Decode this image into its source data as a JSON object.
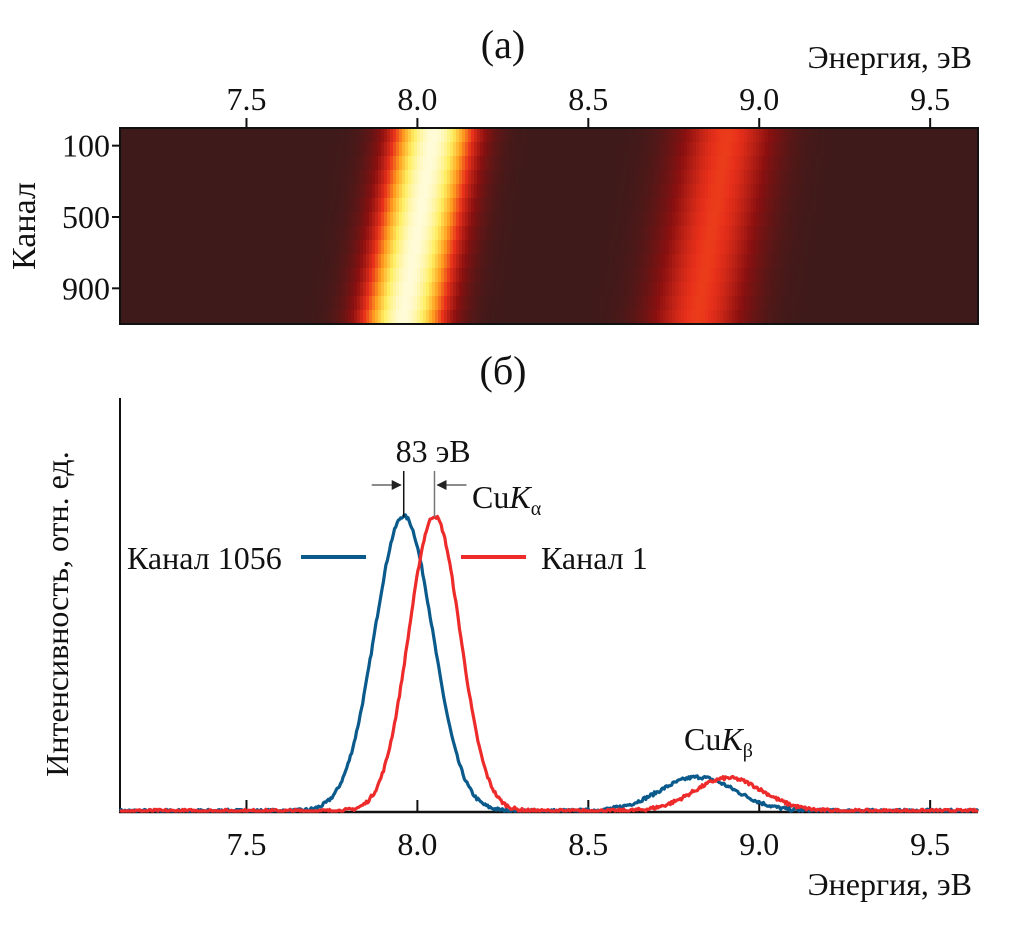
{
  "chart_data": [
    {
      "type": "heatmap",
      "panel_label": "(a)",
      "xlabel": "Энергия, эВ",
      "ylabel": "Канал",
      "xlim": [
        7.13,
        9.64
      ],
      "ylim": [
        1,
        1100
      ],
      "xticks": [
        7.5,
        8.0,
        8.5,
        9.0,
        9.5
      ],
      "xtick_labels": [
        "7.5",
        "8.0",
        "8.5",
        "9.0",
        "9.5"
      ],
      "yticks": [
        100,
        500,
        900
      ],
      "ytick_labels": [
        "100",
        "500",
        "900"
      ],
      "xaxis_position": "top",
      "colormap": [
        "#3e1a1a",
        "#8b1010",
        "#e8301a",
        "#ffa020",
        "#ffee60",
        "#fffbd8"
      ],
      "peaks": [
        {
          "name": "CuKα",
          "center_at_channel_1": 8.05,
          "center_at_channel_1056": 7.96,
          "width_ev": 0.085,
          "intensity": 1.0
        },
        {
          "name": "CuKβ",
          "center_at_channel_1": 8.91,
          "center_at_channel_1056": 8.82,
          "width_ev": 0.1,
          "intensity": 0.42
        }
      ]
    },
    {
      "type": "line",
      "panel_label": "(б)",
      "xlabel": "Энергия, эВ",
      "ylabel": "Интенсивность, отн. ед.",
      "xlim": [
        7.13,
        9.64
      ],
      "ylim": [
        0,
        1.4
      ],
      "xticks": [
        7.5,
        8.0,
        8.5,
        9.0,
        9.5
      ],
      "xtick_labels": [
        "7.5",
        "8.0",
        "8.5",
        "9.0",
        "9.5"
      ],
      "grid": false,
      "series": [
        {
          "name": "Канал 1056",
          "color": "#0b5a8c",
          "peaks": [
            {
              "center": 7.96,
              "sigma": 0.085,
              "amplitude": 1.0
            },
            {
              "center": 8.82,
              "sigma": 0.11,
              "amplitude": 0.115
            }
          ]
        },
        {
          "name": "Канал 1",
          "color": "#ee2b2b",
          "peaks": [
            {
              "center": 8.05,
              "sigma": 0.075,
              "amplitude": 1.0
            },
            {
              "center": 8.91,
              "sigma": 0.1,
              "amplitude": 0.112
            }
          ]
        }
      ],
      "annotations": [
        {
          "text": "83 эВ",
          "type": "separation",
          "from": 7.96,
          "to": 8.05
        },
        {
          "text_main": "Cu",
          "text_italic": "K",
          "text_sub": "α",
          "at_energy": 8.05,
          "label": "CuKα"
        },
        {
          "text_main": "Cu",
          "text_italic": "K",
          "text_sub": "β",
          "at_energy": 8.86,
          "label": "CuKβ"
        }
      ],
      "legend": [
        {
          "label": "Канал 1056",
          "color": "#0b5a8c",
          "position": "left-of-peak"
        },
        {
          "label": "Канал 1",
          "color": "#ee2b2b",
          "position": "right-of-peak"
        }
      ]
    }
  ]
}
